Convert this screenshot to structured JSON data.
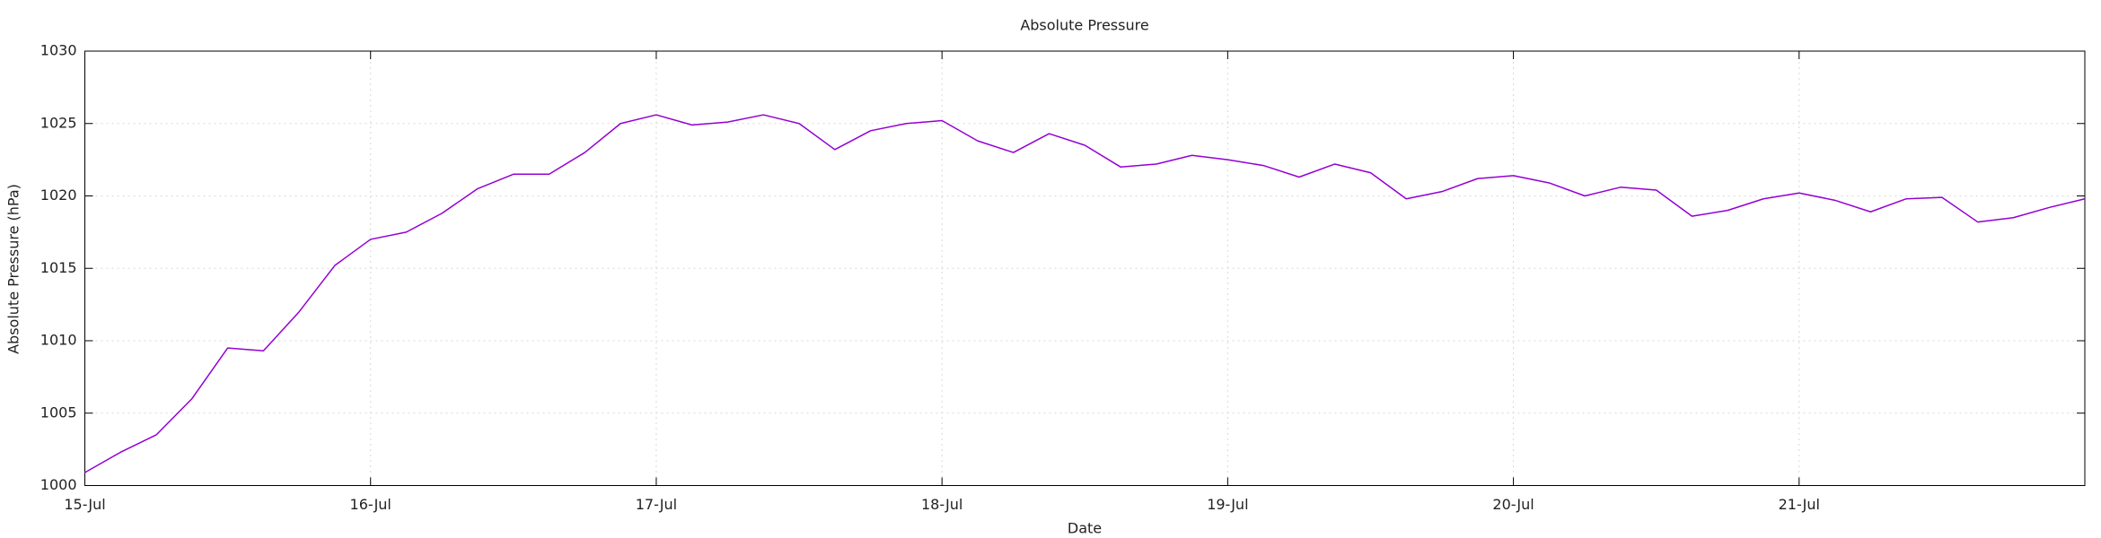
{
  "chart_data": {
    "type": "line",
    "title": "Absolute Pressure",
    "x_label": "Date",
    "y_label": "Absolute Pressure (hPa)",
    "x": [
      0,
      0.125,
      0.25,
      0.375,
      0.5,
      0.625,
      0.75,
      0.875,
      1,
      1.125,
      1.25,
      1.375,
      1.5,
      1.625,
      1.75,
      1.875,
      2,
      2.125,
      2.25,
      2.375,
      2.5,
      2.625,
      2.75,
      2.875,
      3,
      3.125,
      3.25,
      3.375,
      3.5,
      3.625,
      3.75,
      3.875,
      4,
      4.125,
      4.25,
      4.375,
      4.5,
      4.625,
      4.75,
      4.875,
      5,
      5.125,
      5.25,
      5.375,
      5.5,
      5.625,
      5.75,
      5.875,
      6,
      6.125,
      6.25,
      6.375,
      6.5,
      6.625,
      6.75,
      6.875,
      7
    ],
    "series": [
      {
        "name": "Absolute Pressure",
        "color": "#9400d3",
        "values": [
          1000.9,
          1002.3,
          1003.5,
          1006,
          1009.5,
          1009.3,
          1012,
          1015.2,
          1017,
          1017.5,
          1018.8,
          1020.5,
          1021.5,
          1021.5,
          1023,
          1025,
          1025.6,
          1024.9,
          1025.1,
          1025.6,
          1025,
          1023.2,
          1024.5,
          1025,
          1025.2,
          1023.8,
          1023,
          1024.3,
          1023.5,
          1022,
          1022.2,
          1022.8,
          1022.5,
          1022.1,
          1021.3,
          1022.2,
          1021.6,
          1019.8,
          1020.3,
          1021.2,
          1021.4,
          1020.9,
          1020,
          1020.6,
          1020.4,
          1018.6,
          1019,
          1019.8,
          1020.2,
          1019.7,
          1018.9,
          1019.8,
          1019.9,
          1018.2,
          1018.5,
          1019.2,
          1019.8
        ]
      }
    ],
    "xlim": [
      0,
      7
    ],
    "xticks": [
      {
        "value": 0,
        "label": "15-Jul"
      },
      {
        "value": 1,
        "label": "16-Jul"
      },
      {
        "value": 2,
        "label": "17-Jul"
      },
      {
        "value": 3,
        "label": "18-Jul"
      },
      {
        "value": 4,
        "label": "19-Jul"
      },
      {
        "value": 5,
        "label": "20-Jul"
      },
      {
        "value": 6,
        "label": "21-Jul"
      }
    ],
    "ylim": [
      1000,
      1030
    ],
    "yticks": [
      1000,
      1005,
      1010,
      1015,
      1020,
      1025,
      1030
    ],
    "grid": true
  }
}
